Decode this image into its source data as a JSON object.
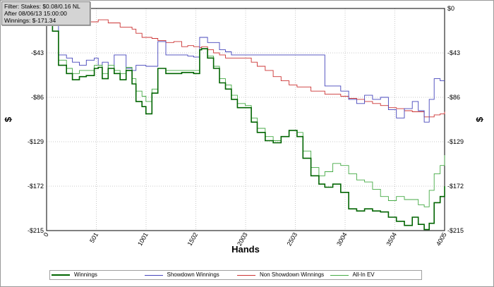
{
  "filter_box": {
    "line1": "Filter: Stakes: $0.08/0.16 NL",
    "line2": "After 08/06/13 15:00:00",
    "line3": "Winnings: $-171.34"
  },
  "chart_data": {
    "type": "line",
    "xlabel": "Hands",
    "ylabel": "$",
    "y2label": "$",
    "xlim": [
      0,
      4005
    ],
    "ylim": [
      -215,
      0
    ],
    "x_ticks": [
      0,
      501,
      1001,
      1502,
      2003,
      2503,
      3004,
      3504,
      4005
    ],
    "y_ticks": [
      0,
      -43,
      -86,
      -129,
      -172,
      -215
    ],
    "y_tick_labels": [
      "$0",
      "-$43",
      "-$86",
      "-$129",
      "-$172",
      "-$215"
    ],
    "grid": true,
    "legend_position": "bottom",
    "x": [
      0,
      60,
      120,
      200,
      260,
      330,
      400,
      480,
      520,
      560,
      620,
      680,
      740,
      800,
      860,
      900,
      960,
      1000,
      1060,
      1120,
      1200,
      1280,
      1360,
      1420,
      1480,
      1540,
      1560,
      1620,
      1680,
      1740,
      1800,
      1860,
      1920,
      2000,
      2060,
      2120,
      2200,
      2280,
      2360,
      2440,
      2520,
      2580,
      2660,
      2740,
      2800,
      2880,
      2960,
      3040,
      3120,
      3200,
      3280,
      3360,
      3440,
      3520,
      3600,
      3680,
      3740,
      3800,
      3850,
      3900,
      3960,
      4005
    ],
    "series": [
      {
        "name": "Winnings",
        "color": "#006400",
        "values": [
          -10,
          -22,
          -55,
          -63,
          -69,
          -66,
          -65,
          -58,
          -57,
          -68,
          -58,
          -63,
          -69,
          -60,
          -73,
          -90,
          -95,
          -102,
          -82,
          -58,
          -63,
          -63,
          -62,
          -62,
          -63,
          -40,
          -39,
          -48,
          -58,
          -72,
          -78,
          -88,
          -96,
          -96,
          -110,
          -120,
          -128,
          -130,
          -124,
          -118,
          -124,
          -145,
          -162,
          -170,
          -173,
          -170,
          -178,
          -194,
          -196,
          -194,
          -196,
          -197,
          -202,
          -206,
          -210,
          -202,
          -209,
          -214,
          -208,
          -188,
          -182,
          -172
        ]
      },
      {
        "name": "Showdown Winnings",
        "color": "#4444bb",
        "values": [
          -8,
          -15,
          -45,
          -48,
          -52,
          -55,
          -50,
          -48,
          -55,
          -52,
          -58,
          -45,
          -45,
          -58,
          -60,
          -55,
          -55,
          -56,
          -56,
          -32,
          -45,
          -45,
          -45,
          -46,
          -47,
          -28,
          -28,
          -33,
          -33,
          -40,
          -42,
          -45,
          -45,
          -45,
          -45,
          -45,
          -45,
          -45,
          -45,
          -45,
          -45,
          -45,
          -45,
          -45,
          -75,
          -75,
          -80,
          -88,
          -92,
          -84,
          -88,
          -86,
          -98,
          -106,
          -97,
          -90,
          -99,
          -110,
          -88,
          -68,
          -70,
          -70
        ]
      },
      {
        "name": "Non Showdown Winnings",
        "color": "#cc3333",
        "values": [
          -3,
          -5,
          -7,
          -10,
          -10,
          -9,
          -13,
          -13,
          -11,
          -11,
          -14,
          -14,
          -18,
          -18,
          -20,
          -24,
          -28,
          -28,
          -29,
          -31,
          -33,
          -32,
          -37,
          -36,
          -37,
          -38,
          -37,
          -40,
          -43,
          -45,
          -48,
          -48,
          -48,
          -48,
          -52,
          -56,
          -60,
          -66,
          -70,
          -74,
          -76,
          -76,
          -80,
          -80,
          -83,
          -83,
          -85,
          -87,
          -88,
          -90,
          -92,
          -94,
          -96,
          -97,
          -99,
          -100,
          -100,
          -105,
          -105,
          -103,
          -102,
          -100
        ]
      },
      {
        "name": "All-In EV",
        "color": "#44aa44",
        "values": [
          -10,
          -22,
          -50,
          -58,
          -63,
          -60,
          -60,
          -55,
          -55,
          -63,
          -55,
          -60,
          -63,
          -57,
          -68,
          -80,
          -85,
          -90,
          -78,
          -58,
          -60,
          -60,
          -60,
          -60,
          -60,
          -40,
          -39,
          -46,
          -56,
          -68,
          -74,
          -84,
          -92,
          -94,
          -106,
          -116,
          -124,
          -128,
          -124,
          -118,
          -120,
          -138,
          -154,
          -162,
          -158,
          -150,
          -152,
          -160,
          -166,
          -168,
          -175,
          -182,
          -186,
          -182,
          -185,
          -185,
          -190,
          -192,
          -176,
          -160,
          -152,
          -142
        ]
      }
    ]
  },
  "legend": {
    "winnings": "Winnings",
    "showdown": "Showdown Winnings",
    "non_showdown": "Non Showdown Winnings",
    "allin_ev": "All-In EV"
  }
}
